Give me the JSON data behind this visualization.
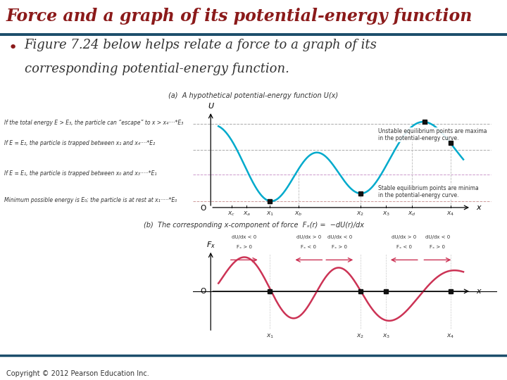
{
  "title": "Force and a graph of its potential-energy function",
  "title_color": "#8B1A1A",
  "divider_color": "#1C4E6B",
  "bullet_text_line1": "Figure 7.24 below helps relate a force to a graph of its",
  "bullet_text_line2": "corresponding potential-energy function.",
  "bullet_color": "#8B1A1A",
  "text_color": "#333333",
  "copyright_text": "Copyright © 2012 Pearson Education Inc.",
  "bg_color": "#FFFFFF",
  "panel_a_label": "(a)  A hypothetical potential-energy function U(x)",
  "panel_b_label": "(b)  The corresponding x-component of force  Fₓ(r) =  −dU(r)/dx",
  "curve_color_a": "#00AACC",
  "curve_color_b": "#CC3355",
  "dot_color": "#111111",
  "ann_left": [
    "If the total energy E > E₃, the particle can “escape” to x > x₄····*E₃",
    "If E = E₂, the particle is trapped between x₁ and x₄····*E₂",
    "If E = E₁, the particle is trapped between x₀ and x₃·····*E₁",
    "Minimum possible energy is E₀; the particle is at rest at x₁·····*E₀"
  ],
  "ann_right_unstable": "Unstable equilibrium points are maxima\nin the potential-energy curve.",
  "ann_right_stable": "Stable equilibrium points are minima\nin the potential-energy curve.",
  "du_labels": [
    "dU/dx < 0",
    "dU/dx > 0",
    "dU/dx < 0",
    "dU/dx > 0",
    "dU/dx < 0"
  ],
  "fx_labels": [
    "Fₓ > 0",
    "Fₓ < 0",
    "Fₓ > 0",
    "Fₓ < 0",
    "Fₓ > 0"
  ],
  "x_labels_b": [
    "x₁",
    "x₂",
    "x₃",
    "x₄"
  ]
}
